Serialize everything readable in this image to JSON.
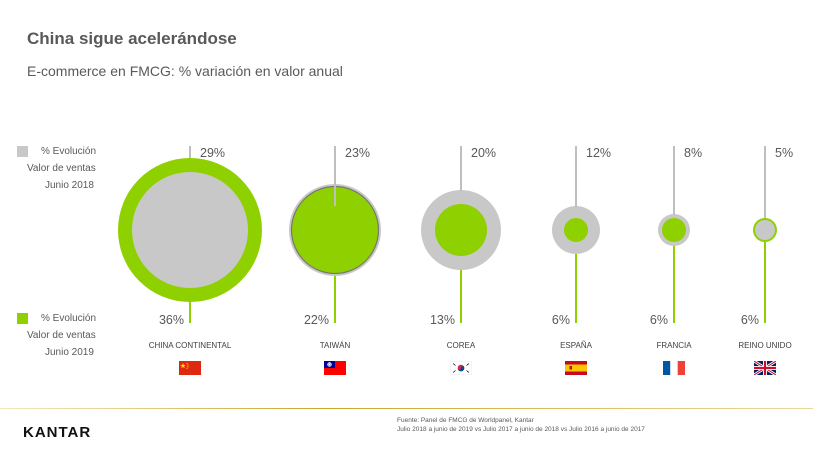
{
  "header": {
    "title": "China sigue acelerándose",
    "subtitle": "E-commerce en FMCG: % variación en valor anual"
  },
  "legend": {
    "grey": [
      "% Evolución",
      "Valor de ventas",
      "Junio 2018"
    ],
    "green": [
      "% Evolución",
      "Valor de ventas",
      "Junio 2019"
    ]
  },
  "colors": {
    "grey": "#c8c8c8",
    "green": "#8fd000",
    "line_grey": "#bfbfbf",
    "line_green": "#8fd000"
  },
  "footer": {
    "logo": "KANTAR",
    "source_line1": "Fuente: Panel de FMCG de Worldpanel, Kantar",
    "source_line2": "Julio 2018 a junio de 2019 vs Julio 2017 a junio de 2018 vs Julio 2016 a junio de 2017"
  },
  "chart_data": {
    "type": "bubble-comparison",
    "categories": [
      "CHINA CONTINENTAL",
      "TAIWÁN",
      "COREA",
      "ESPAÑA",
      "FRANCIA",
      "REINO UNIDO"
    ],
    "series": [
      {
        "name": "% Evolución Valor de ventas Junio 2018",
        "values": [
          29,
          23,
          20,
          12,
          8,
          5
        ],
        "labels": [
          "29%",
          "23%",
          "20%",
          "12%",
          "8%",
          "5%"
        ]
      },
      {
        "name": "% Evolución Valor de ventas Junio 2019",
        "values": [
          36,
          22,
          13,
          6,
          6,
          6
        ],
        "labels": [
          "36%",
          "22%",
          "13%",
          "6%",
          "6%",
          "6%"
        ]
      }
    ],
    "flags": [
      "flag-china-icon",
      "flag-taiwan-icon",
      "flag-korea-icon",
      "flag-spain-icon",
      "flag-france-icon",
      "flag-uk-icon"
    ]
  }
}
